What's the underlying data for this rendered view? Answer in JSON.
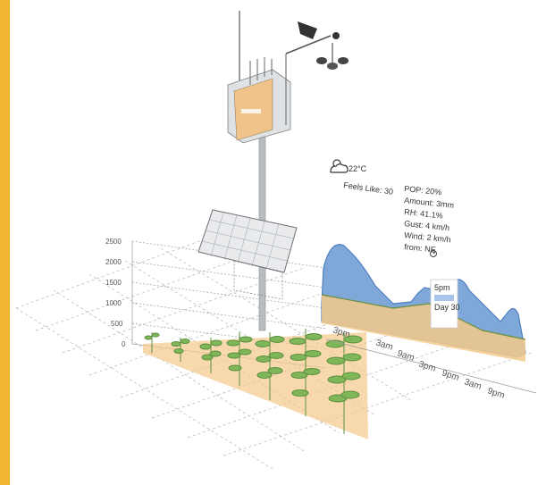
{
  "colors": {
    "accent_bar": "#f2b632",
    "soil": "#f3c98a",
    "water": "#7fa7d8",
    "plant": "#6aa84f",
    "grid": "#9a9a9a"
  },
  "icons": [
    "partly-cloudy-icon",
    "wind-direction-icon",
    "weather-station-icon",
    "solar-panel-icon",
    "anemometer-icon"
  ],
  "weather": {
    "temperature": "22°C",
    "feels_like": "Feels Like: 30",
    "pop": "POP: 20%",
    "amount": "Amount: 3mm",
    "rh": "RH: 41.1%",
    "gust": "Gust: 4 km/h",
    "wind": "Wind: 2 km/h",
    "from": "from: NE"
  },
  "axis": {
    "y_ticks": [
      "2500",
      "2000",
      "1500",
      "1000",
      "500",
      "0"
    ],
    "time_ticks": [
      "3pm",
      "3am",
      "9am",
      "3pm",
      "9pm",
      "3am",
      "9pm"
    ]
  },
  "callout": {
    "line1": "5pm",
    "line2": "Day 30"
  }
}
